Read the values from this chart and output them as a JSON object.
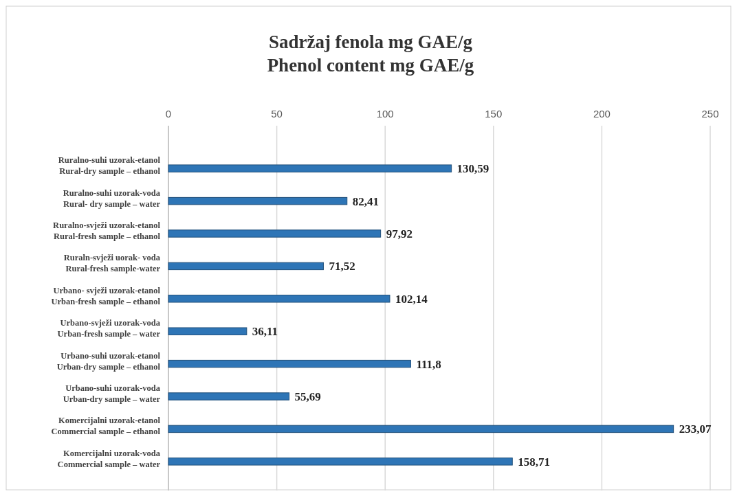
{
  "chart_data": {
    "type": "bar",
    "orientation": "horizontal",
    "title": "Sadržaj  fenola mg GAE/g\nPhenol content mg GAE/g",
    "categories": [
      "Ruralno-suhi uzorak-etanol\nRural-dry sample – ethanol",
      "Ruralno-suhi uzorak-voda\nRural- dry sample – water",
      "Ruralno-svježi uzorak-etanol\nRural-fresh sample – ethanol",
      "Ruraln-svježi uorak- voda\nRural-fresh sample-water",
      "Urbano- svježi uzorak-etanol\nUrban-fresh sample – ethanol",
      "Urbano-svježi uzorak-voda\nUrban-fresh sample – water",
      "Urbano-suhi uzorak-etanol\nUrban-dry sample – ethanol",
      "Urbano-suhi uzorak-voda\nUrban-dry sample – water",
      "Komercijalni uzorak-etanol\nCommercial sample – ethanol",
      "Komercijalni uzorak-voda\nCommercial sample – water"
    ],
    "values": [
      130.59,
      82.41,
      97.92,
      71.52,
      102.14,
      36.11,
      111.8,
      55.69,
      233.07,
      158.71
    ],
    "value_labels": [
      "130,59",
      "82,41",
      "97,92",
      "71,52",
      "102,14",
      "36,11",
      "111,8",
      "55,69",
      "233,07",
      "158,71"
    ],
    "color": "#2e75b6",
    "xlim": [
      0,
      250
    ],
    "xticks": [
      0,
      50,
      100,
      150,
      200,
      250
    ],
    "grid": "x"
  }
}
